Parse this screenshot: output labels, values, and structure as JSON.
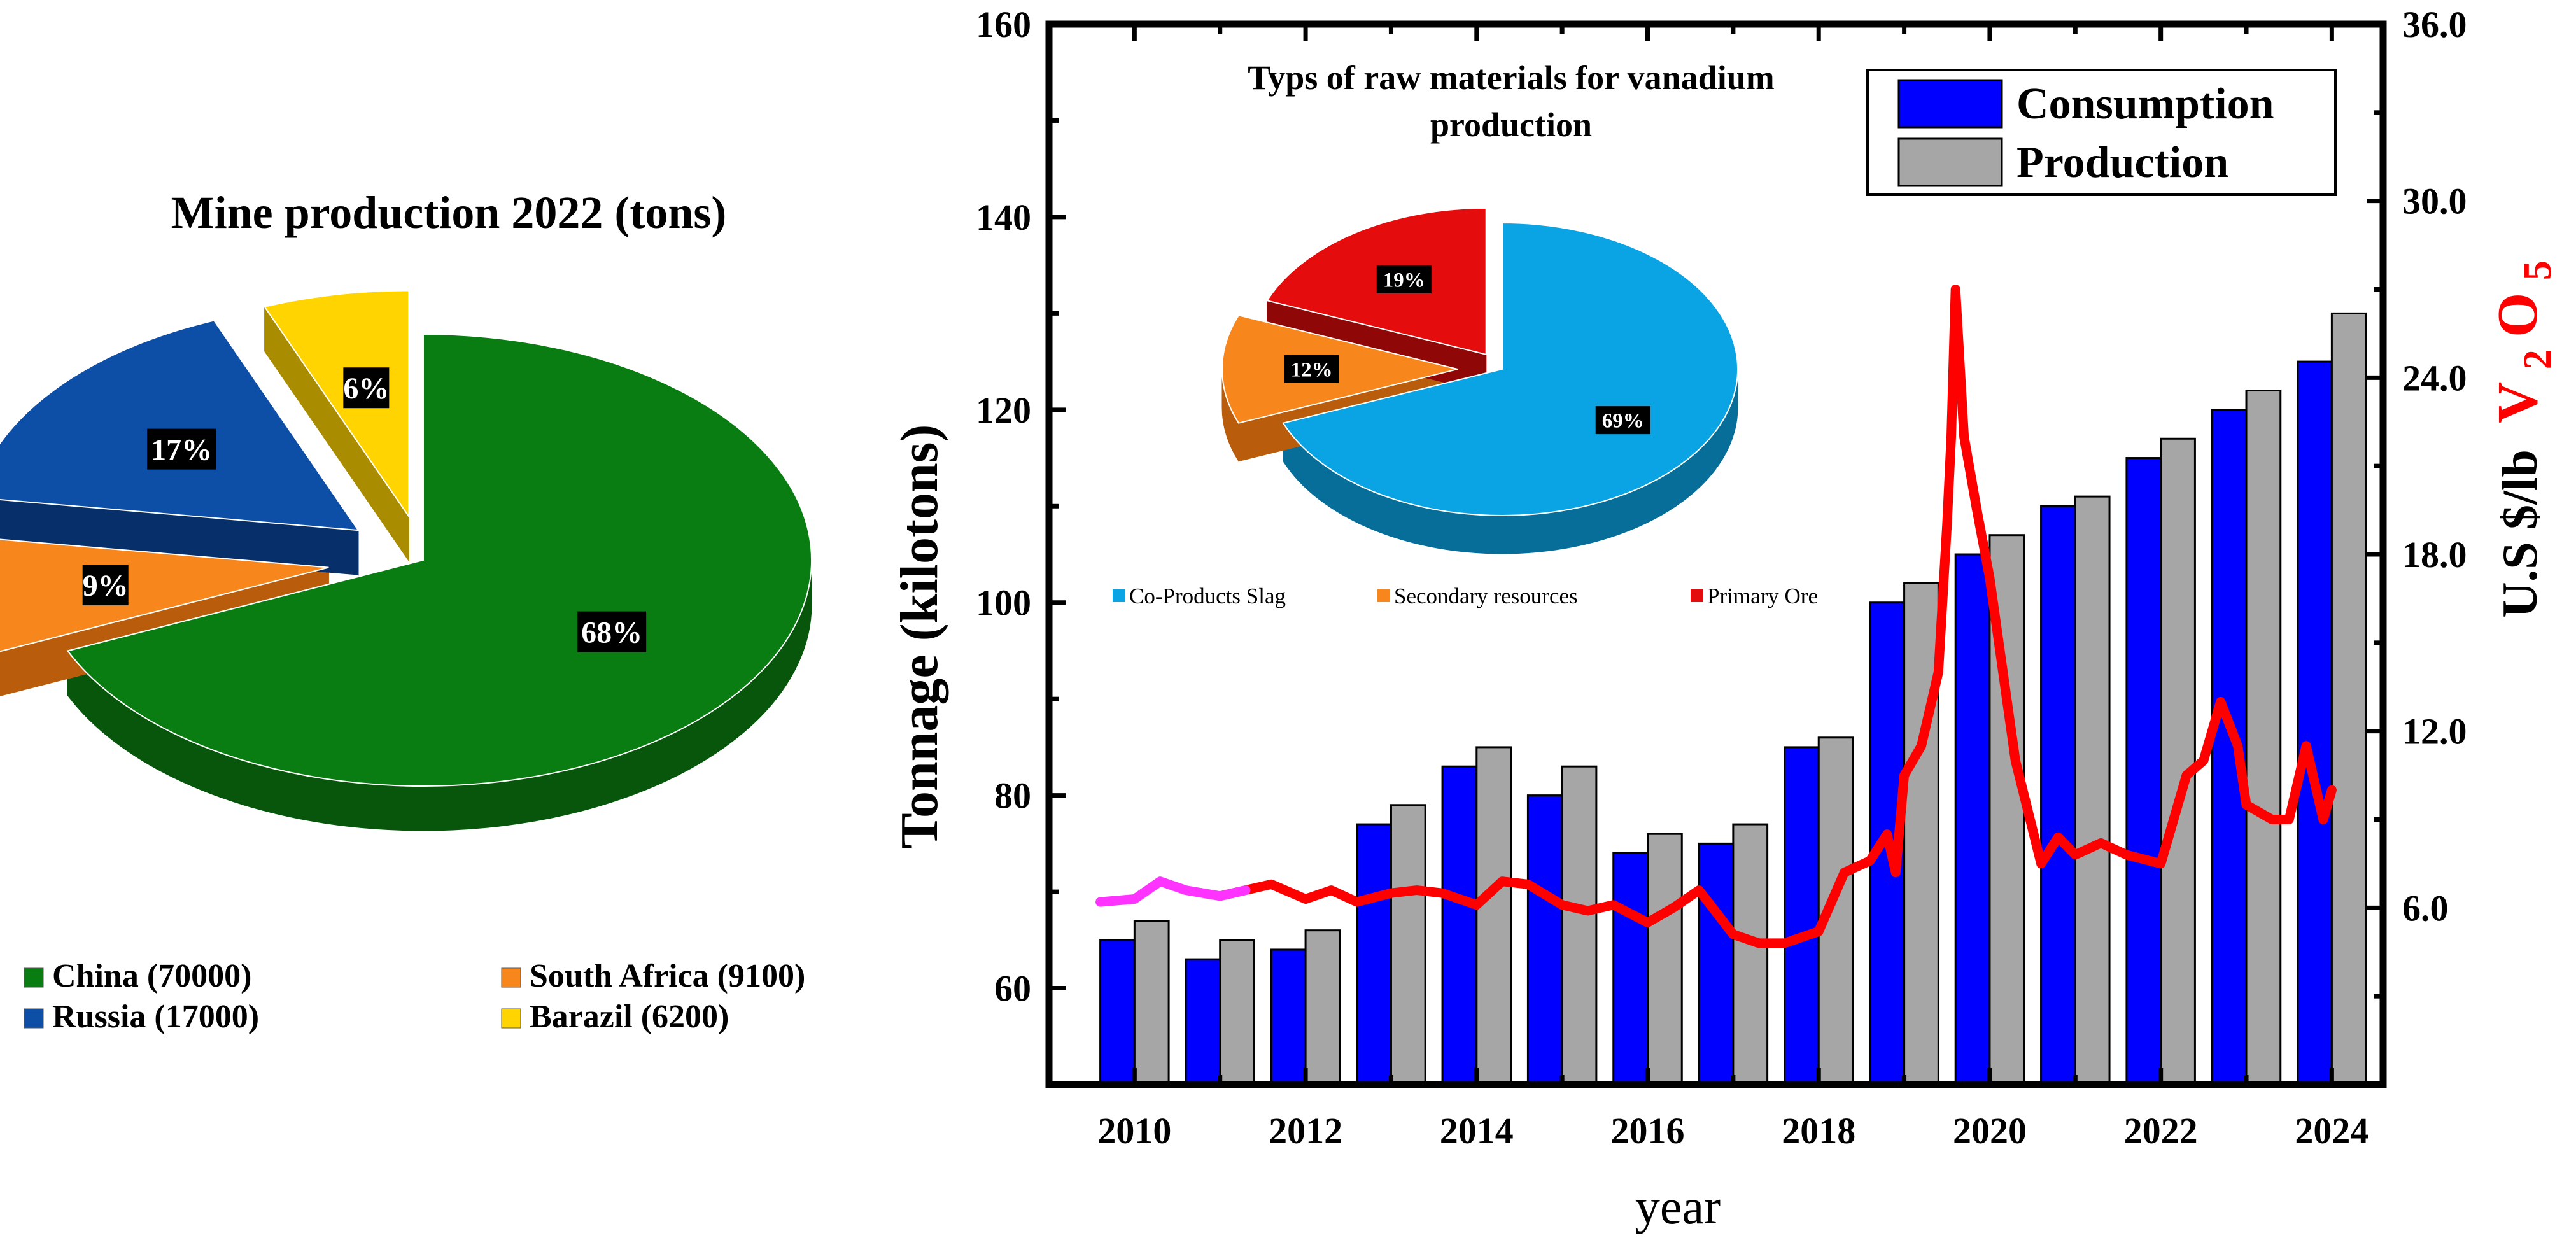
{
  "chart_data": [
    {
      "id": "mine_production",
      "type": "pie",
      "title": "Mine production 2022 (tons)",
      "slices": [
        {
          "label": "China (70000)",
          "value": 70000,
          "percent_label": "68%",
          "color": "#0a7d12",
          "side": "#07560c"
        },
        {
          "label": "South Africa (9100)",
          "value": 9100,
          "percent_label": "9%",
          "color": "#f7861c",
          "side": "#b95d0c"
        },
        {
          "label": "Russia (17000)",
          "value": 17000,
          "percent_label": "17%",
          "color": "#0d4ea6",
          "side": "#07306a"
        },
        {
          "label": "Barazil (6200)",
          "value": 6200,
          "percent_label": "6%",
          "color": "#ffd400",
          "side": "#a98c00"
        }
      ],
      "legend": [
        "China (70000)",
        "South Africa (9100)",
        "Russia (17000)",
        "Barazil (6200)"
      ]
    },
    {
      "id": "vanadium_market",
      "type": "bar",
      "categories": [
        "2010",
        "2011",
        "2012",
        "2013",
        "2014",
        "2015",
        "2016",
        "2017",
        "2018",
        "2019",
        "2020",
        "2021",
        "2022",
        "2023",
        "2024"
      ],
      "series": [
        {
          "name": "Consumption",
          "color": "#0000ff",
          "values": [
            65,
            63,
            64,
            77,
            83,
            80,
            74,
            75,
            85,
            100,
            105,
            110,
            115,
            120,
            125
          ]
        },
        {
          "name": "Production",
          "color": "#a6a6a6",
          "values": [
            67,
            65,
            66,
            79,
            85,
            83,
            76,
            77,
            86,
            102,
            107,
            111,
            117,
            122,
            130
          ]
        }
      ],
      "line_series": {
        "name": "V2O5 price",
        "color": "#ff0000",
        "early_color": "#ff33ff",
        "early_until": 2011.3,
        "x": [
          2009.6,
          2010.0,
          2010.3,
          2010.6,
          2011.0,
          2011.3,
          2011.6,
          2012.0,
          2012.3,
          2012.6,
          2013.0,
          2013.3,
          2013.6,
          2014.0,
          2014.3,
          2014.6,
          2015.0,
          2015.3,
          2015.6,
          2016.0,
          2016.3,
          2016.6,
          2017.0,
          2017.3,
          2017.6,
          2018.0,
          2018.3,
          2018.6,
          2018.8,
          2018.9,
          2019.0,
          2019.2,
          2019.4,
          2019.5,
          2019.55,
          2019.6,
          2019.7,
          2019.85,
          2020.0,
          2020.3,
          2020.6,
          2020.8,
          2021.0,
          2021.3,
          2021.6,
          2022.0,
          2022.3,
          2022.5,
          2022.7,
          2022.9,
          2023.0,
          2023.3,
          2023.5,
          2023.7,
          2023.9,
          2024.0
        ],
        "y": [
          6.2,
          6.3,
          6.9,
          6.6,
          6.4,
          6.6,
          6.8,
          6.3,
          6.6,
          6.2,
          6.5,
          6.6,
          6.5,
          6.1,
          6.9,
          6.8,
          6.1,
          5.9,
          6.1,
          5.5,
          6.0,
          6.6,
          5.1,
          4.8,
          4.8,
          5.2,
          7.2,
          7.6,
          8.5,
          7.2,
          10.5,
          11.5,
          14,
          19,
          22,
          27,
          22,
          19.5,
          17.2,
          11,
          7.5,
          8.4,
          7.8,
          8.2,
          7.8,
          7.5,
          10.5,
          11,
          13,
          11.5,
          9.5,
          9.0,
          9.0,
          11.5,
          9.0,
          10.0
        ]
      },
      "x_axis": {
        "label": "year",
        "range": [
          2009,
          2024.6
        ],
        "ticks": [
          "2010",
          "2012",
          "2014",
          "2016",
          "2018",
          "2020",
          "2022",
          "2024"
        ]
      },
      "y_axis_left": {
        "label": "Tonnage (kilotons)",
        "range": [
          50,
          160
        ],
        "ticks": [
          "60",
          "80",
          "100",
          "120",
          "140",
          "160"
        ]
      },
      "y_axis_right": {
        "label_prefix": "U.S $/lb",
        "label_formula": "V2O5",
        "formula_parts": [
          "V",
          "2",
          "O",
          "5"
        ],
        "range": [
          0,
          36
        ],
        "ticks": [
          "6.0",
          "12.0",
          "18.0",
          "24.0",
          "30.0",
          "36.0"
        ]
      },
      "legend": [
        "Consumption",
        "Production"
      ]
    },
    {
      "id": "raw_materials",
      "type": "pie",
      "title_lines": [
        "Typs of raw materials for vanadium",
        "production"
      ],
      "slices": [
        {
          "label": "Co-Products Slag",
          "value": 69,
          "percent_label": "69%",
          "color": "#0aa4e4",
          "side": "#076e99"
        },
        {
          "label": "Secondary resources",
          "value": 12,
          "percent_label": "12%",
          "color": "#f7861c",
          "side": "#b95d0c"
        },
        {
          "label": "Primary Ore",
          "value": 19,
          "percent_label": "19%",
          "color": "#e40c0c",
          "side": "#8f0707"
        }
      ],
      "legend": [
        "Co-Products Slag",
        "Secondary resources",
        "Primary Ore"
      ]
    }
  ]
}
